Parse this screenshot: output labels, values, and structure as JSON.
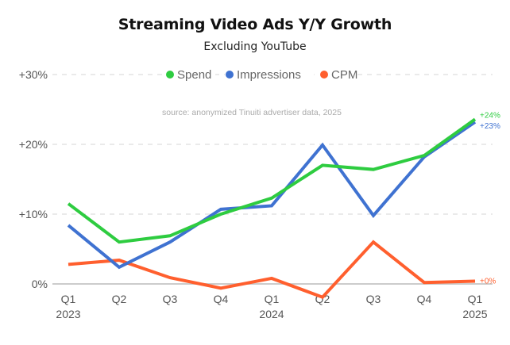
{
  "chart_data": {
    "type": "line",
    "title": "Streaming Video Ads Y/Y Growth",
    "subtitle": "Excluding YouTube",
    "source_note": "source: anonymized Tinuiti advertiser data, 2025",
    "xlabel": "",
    "ylabel": "",
    "ylim": [
      0,
      30
    ],
    "y_ticks": [
      {
        "value": 0,
        "label": "0%"
      },
      {
        "value": 10,
        "label": "+10%"
      },
      {
        "value": 20,
        "label": "+20%"
      },
      {
        "value": 30,
        "label": "+30%"
      }
    ],
    "grid": true,
    "legend_position": "top-center",
    "categories": [
      "Q1 2023",
      "Q2 2023",
      "Q3 2023",
      "Q4 2023",
      "Q1 2024",
      "Q2 2024",
      "Q3 2024",
      "Q4 2024",
      "Q1 2025"
    ],
    "x_tick_labels": [
      {
        "quarter": "Q1",
        "year": "2023"
      },
      {
        "quarter": "Q2",
        "year": ""
      },
      {
        "quarter": "Q3",
        "year": ""
      },
      {
        "quarter": "Q4",
        "year": ""
      },
      {
        "quarter": "Q1",
        "year": "2024"
      },
      {
        "quarter": "Q2",
        "year": ""
      },
      {
        "quarter": "Q3",
        "year": ""
      },
      {
        "quarter": "Q4",
        "year": ""
      },
      {
        "quarter": "Q1",
        "year": "2025"
      }
    ],
    "series": [
      {
        "name": "Spend",
        "color": "#2ecc40",
        "values": [
          11.5,
          6.0,
          6.9,
          10.0,
          12.3,
          17.0,
          16.4,
          18.4,
          23.6
        ],
        "end_label": "+24%"
      },
      {
        "name": "Impressions",
        "color": "#3f72d1",
        "values": [
          8.4,
          2.4,
          6.0,
          10.7,
          11.2,
          19.9,
          9.8,
          18.2,
          23.2
        ],
        "end_label": "+23%"
      },
      {
        "name": "CPM",
        "color": "#ff5f2e",
        "values": [
          2.8,
          3.4,
          0.9,
          -0.6,
          0.8,
          -1.9,
          6.0,
          0.2,
          0.4
        ],
        "end_label": "+0%"
      }
    ]
  }
}
